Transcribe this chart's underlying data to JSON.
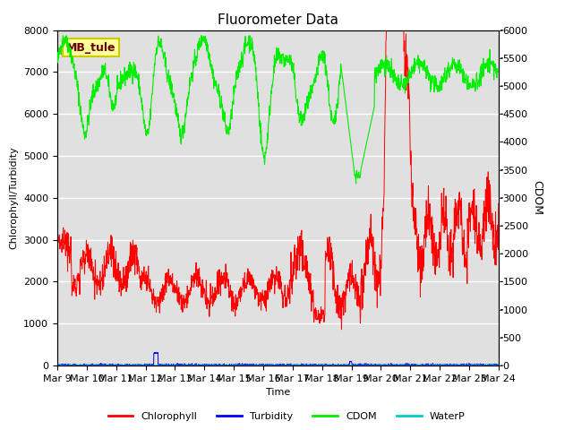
{
  "title": "Fluorometer Data",
  "xlabel": "Time",
  "ylabel_left": "Chlorophyll/Turbidity",
  "ylabel_right": "CDOM",
  "annotation": "MB_tule",
  "ylim_left": [
    0,
    8000
  ],
  "ylim_right": [
    0,
    6000
  ],
  "yticks_left": [
    0,
    1000,
    2000,
    3000,
    4000,
    5000,
    6000,
    7000,
    8000
  ],
  "yticks_right": [
    0,
    500,
    1000,
    1500,
    2000,
    2500,
    3000,
    3500,
    4000,
    4500,
    5000,
    5500,
    6000
  ],
  "xtick_labels": [
    "Mar 9",
    "Mar 10",
    "Mar 11",
    "Mar 12",
    "Mar 13",
    "Mar 14",
    "Mar 15",
    "Mar 16",
    "Mar 17",
    "Mar 18",
    "Mar 19",
    "Mar 20",
    "Mar 21",
    "Mar 22",
    "Mar 23",
    "Mar 24"
  ],
  "colors": {
    "chlorophyll": "#FF0000",
    "turbidity": "#0000FF",
    "cdom": "#00EE00",
    "waterp": "#00CCCC",
    "bg": "#E0E0E0",
    "annotation_bg": "#FFFF99",
    "annotation_border": "#CCCC00"
  },
  "legend_entries": [
    "Chlorophyll",
    "Turbidity",
    "CDOM",
    "WaterP"
  ]
}
